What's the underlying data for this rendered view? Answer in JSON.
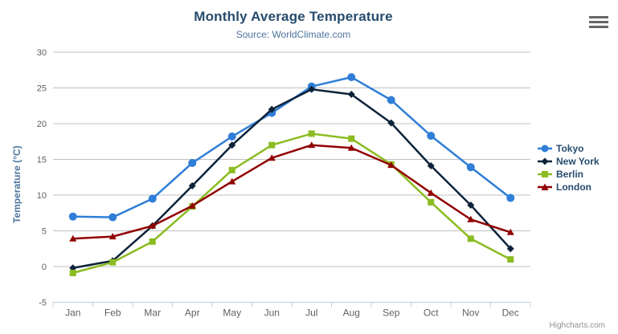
{
  "header": {
    "title": "Monthly Average Temperature",
    "subtitle": "Source: WorldClimate.com"
  },
  "credits": {
    "label": "Highcharts.com"
  },
  "context_menu": {
    "icon": "hamburger-menu-icon"
  },
  "colors": {
    "background": "#ffffff",
    "title_text": "#274b6d",
    "subtitle_text": "#4d759e",
    "axis_title_text": "#4d759e",
    "tick_label_text": "#606060",
    "gridline": "#c0c0c0",
    "axis_line": "#c0d0e0",
    "legend_text": "#274b6d",
    "credits_text": "#909090",
    "menu_icon": "#666666"
  },
  "chart_data": {
    "type": "line",
    "title": "Monthly Average Temperature",
    "subtitle": "Source: WorldClimate.com",
    "xlabel": "",
    "ylabel": "Temperature (°C)",
    "categories": [
      "Jan",
      "Feb",
      "Mar",
      "Apr",
      "May",
      "Jun",
      "Jul",
      "Aug",
      "Sep",
      "Oct",
      "Nov",
      "Dec"
    ],
    "ylim": [
      -5,
      30
    ],
    "ytick_step": 5,
    "grid": true,
    "legend_position": "right",
    "series": [
      {
        "name": "Tokyo",
        "color": "#2f7ed8",
        "marker": "circle",
        "values": [
          7.0,
          6.9,
          9.5,
          14.5,
          18.2,
          21.5,
          25.2,
          26.5,
          23.3,
          18.3,
          13.9,
          9.6
        ]
      },
      {
        "name": "New York",
        "color": "#0d233a",
        "marker": "diamond",
        "values": [
          -0.2,
          0.8,
          5.7,
          11.3,
          17.0,
          22.0,
          24.8,
          24.1,
          20.1,
          14.1,
          8.6,
          2.5
        ]
      },
      {
        "name": "Berlin",
        "color": "#8bbc21",
        "marker": "square",
        "values": [
          -0.9,
          0.6,
          3.5,
          8.4,
          13.5,
          17.0,
          18.6,
          17.9,
          14.3,
          9.0,
          3.9,
          1.0
        ]
      },
      {
        "name": "London",
        "color": "#910000",
        "marker": "triangle",
        "values": [
          3.9,
          4.2,
          5.7,
          8.5,
          11.9,
          15.2,
          17.0,
          16.6,
          14.2,
          10.3,
          6.6,
          4.8
        ]
      }
    ]
  }
}
